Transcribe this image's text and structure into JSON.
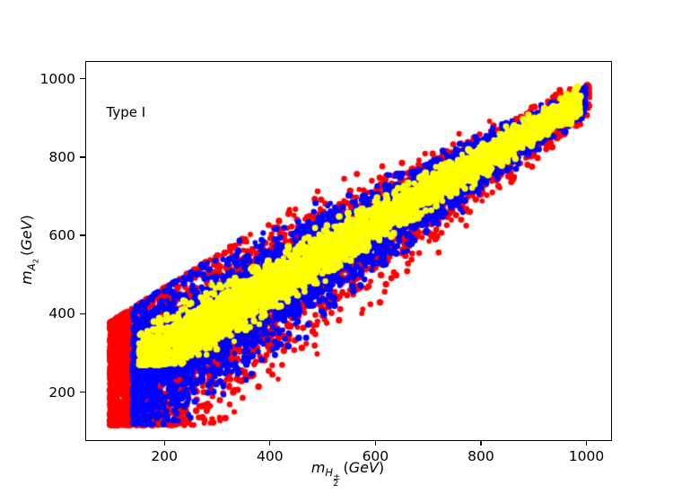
{
  "figure": {
    "background": "#ffffff",
    "axis_color": "#000000"
  },
  "chart_data": {
    "type": "scatter",
    "title": "",
    "annotation": "Type I",
    "annotation_xy": [
      90,
      915
    ],
    "xlabel_html": "<i>m</i><sub><i>H</i><span class='stk'><span class='stk-t'>&#177;</span><span class='stk-b'>2</span></span></sub>&#8201;(<i>GeV</i>)",
    "ylabel_html": "<i>m</i><sub><i>A</i><sub>2</sub></sub>&#8201;(<i>GeV</i>)",
    "xlabel_text": "m_H2± (GeV)",
    "ylabel_text": "m_A2 (GeV)",
    "xlim": [
      50,
      1045
    ],
    "ylim": [
      80,
      1045
    ],
    "xticks": [
      200,
      400,
      600,
      800,
      1000
    ],
    "yticks": [
      200,
      400,
      600,
      800,
      1000
    ],
    "grid": false,
    "legend": "none",
    "band": {
      "seed": 7,
      "center_slope": 0.8,
      "center_intercept": 155,
      "floor": 118,
      "lower_x0": 480,
      "lower_slope": 1.5,
      "upper_slope": 0.85,
      "upper_intercept": 300,
      "cap": 1002
    },
    "series": [
      {
        "name": "red",
        "color": "#ff0000",
        "count": 5200,
        "x_min": 95,
        "x_max": 1005,
        "x_bias": 1.55,
        "width_low": 270,
        "width_high": 46,
        "lower_mult": 1.55,
        "upper_mult": 1.1,
        "y_min": 118,
        "radius": 3.3
      },
      {
        "name": "blue",
        "color": "#0000ff",
        "count": 5200,
        "x_min": 138,
        "x_max": 997,
        "x_bias": 1.3,
        "width_low": 208,
        "width_high": 36,
        "lower_mult": 1.45,
        "upper_mult": 1.12,
        "y_min": 120,
        "radius": 3.3
      },
      {
        "name": "yellow",
        "color": "#ffff00",
        "count": 3400,
        "x_min": 150,
        "x_max": 987,
        "x_bias": 1.05,
        "width_low": 118,
        "width_high": 42,
        "lower_mult": 1.0,
        "upper_mult": 1.0,
        "y_min": 272,
        "radius": 3.6
      }
    ]
  }
}
